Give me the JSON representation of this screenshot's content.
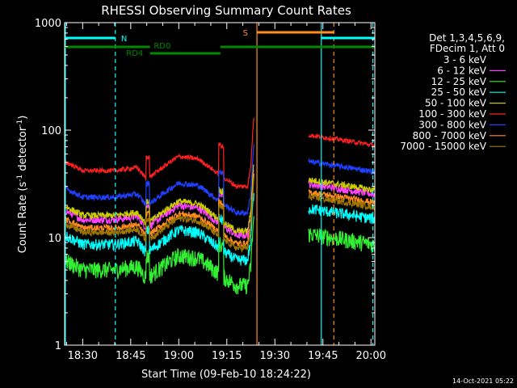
{
  "chart_data": {
    "type": "line",
    "title": "RHESSI Observing Summary Count Rates",
    "xlabel": "Start Time (09-Feb-10 18:24:22)",
    "ylabel_parts": {
      "pre": "Count Rate (s",
      "sup1": "-1",
      "mid": " detector",
      "sup2": "-1",
      "post": ")"
    },
    "yscale": "log",
    "ylim": [
      1,
      1000
    ],
    "xlim_minutes": [
      24.37,
      121.2
    ],
    "x_ticks": [
      {
        "label": "18:30",
        "m": 30
      },
      {
        "label": "18:45",
        "m": 45
      },
      {
        "label": "19:00",
        "m": 60
      },
      {
        "label": "19:15",
        "m": 75
      },
      {
        "label": "19:30",
        "m": 90
      },
      {
        "label": "19:45",
        "m": 105
      },
      {
        "label": "20:00",
        "m": 120
      }
    ],
    "y_ticks": [
      {
        "label": "1",
        "v": 1
      },
      {
        "label": "10",
        "v": 10
      },
      {
        "label": "100",
        "v": 100
      },
      {
        "label": "1000",
        "v": 1000
      }
    ],
    "legend": {
      "header1": "Det 1,3,4,5,6,9,",
      "header2": "FDecim 1, Att 0",
      "position": "right"
    },
    "series": [
      {
        "name": "3 - 6 keV",
        "color": "#000000",
        "scale": 0.74,
        "noise": 0.32
      },
      {
        "name": "6 - 12 keV",
        "color": "#ff40ff",
        "scale": 1.05,
        "noise": 0.08
      },
      {
        "name": "12 - 25 keV",
        "color": "#33ee33",
        "scale": 0.36,
        "noise": 0.18
      },
      {
        "name": "25 - 50 keV",
        "color": "#00ffff",
        "scale": 0.62,
        "noise": 0.12
      },
      {
        "name": "50 - 100 keV",
        "color": "#cccc00",
        "scale": 1.15,
        "noise": 0.07
      },
      {
        "name": "100 - 300 keV",
        "color": "#ff2020",
        "scale": 3.0,
        "noise": 0.05
      },
      {
        "name": "300 - 800 keV",
        "color": "#2040ff",
        "scale": 1.7,
        "noise": 0.06
      },
      {
        "name": "800 - 7000 keV",
        "color": "#ff8c20",
        "scale": 0.88,
        "noise": 0.07
      },
      {
        "name": "7000 - 15000 keV",
        "color": "#a07800",
        "scale": 0.8,
        "noise": 0.07
      }
    ],
    "base_profile_minutes": [
      24.4,
      30,
      40,
      47,
      50,
      55,
      60,
      66,
      71,
      74,
      78,
      81.5,
      83.5
    ],
    "base_profile_values": [
      17,
      14,
      14,
      15,
      11.5,
      15,
      19,
      18,
      14,
      12,
      10,
      10,
      20
    ],
    "gaps_minutes": [
      [
        83.5,
        100.5
      ]
    ],
    "segment2_minutes": [
      100.5,
      121.2
    ],
    "segment2_values": [
      30,
      24
    ],
    "status_bars": [
      {
        "label": "N",
        "color": "#00ffff",
        "start": 24.37,
        "end": 121.2,
        "gap": [
          40.2,
          104.5
        ],
        "level": "top"
      },
      {
        "label": "S",
        "color": "#ff8c20",
        "start": 84.5,
        "end": 108.4,
        "level": "top2"
      },
      {
        "label": "RD0",
        "color": "#008800",
        "start": 24.37,
        "end": 51,
        "level": "mid"
      },
      {
        "label": "RD4",
        "color": "#008800",
        "start": 51,
        "end": 73,
        "level": "low"
      },
      {
        "label": "RD0b",
        "color": "#008800",
        "start": 73,
        "end": 121.2,
        "level": "mid"
      }
    ],
    "status_texts": {
      "n": "N",
      "s": "S",
      "rd0": "RD0",
      "rd4": "RD4"
    },
    "vertical_lines": [
      {
        "m": 24.6,
        "color": "#00ffff",
        "dash": false
      },
      {
        "m": 40.2,
        "color": "#00ffff",
        "dash": true
      },
      {
        "m": 84.4,
        "color": "#ff8c20",
        "dash": false
      },
      {
        "m": 104.5,
        "color": "#00ffff",
        "dash": false
      },
      {
        "m": 108.4,
        "color": "#ff8c20",
        "dash": true
      },
      {
        "m": 120.6,
        "color": "#00ffff",
        "dash": true
      }
    ]
  },
  "footer_date": "14-Oct-2021 05:22"
}
